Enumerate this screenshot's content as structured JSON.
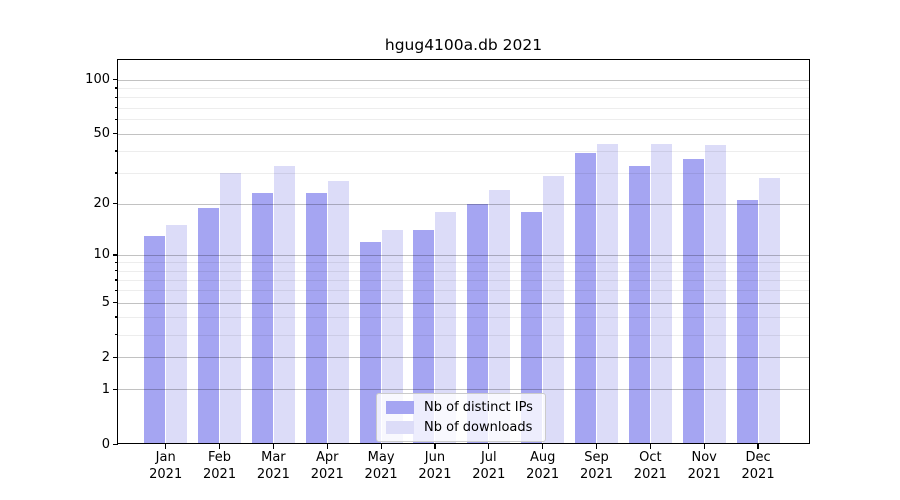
{
  "title": "hgug4100a.db 2021",
  "legend": {
    "items": [
      {
        "label": "Nb of distinct IPs"
      },
      {
        "label": "Nb of downloads"
      }
    ]
  },
  "chart_data": {
    "type": "bar",
    "title": "hgug4100a.db 2021",
    "categories": [
      "Jan 2021",
      "Feb 2021",
      "Mar 2021",
      "Apr 2021",
      "May 2021",
      "Jun 2021",
      "Jul 2021",
      "Aug 2021",
      "Sep 2021",
      "Oct 2021",
      "Nov 2021",
      "Dec 2021"
    ],
    "series": [
      {
        "name": "Nb of distinct IPs",
        "color": "#a5a5f2",
        "values": [
          13,
          19,
          23,
          23,
          12,
          14,
          20,
          18,
          39,
          33,
          36,
          21
        ]
      },
      {
        "name": "Nb of downloads",
        "color": "#dcdcf8",
        "values": [
          15,
          30,
          33,
          27,
          14,
          18,
          24,
          29,
          44,
          44,
          43,
          28
        ]
      }
    ],
    "xlabel": "",
    "ylabel": "",
    "yscale": "log10(value+1)",
    "yticks": [
      0,
      1,
      2,
      5,
      10,
      20,
      50,
      100
    ],
    "minor_yticks": [
      3,
      4,
      6,
      7,
      8,
      9,
      30,
      40,
      60,
      70,
      80,
      90
    ],
    "ylim": [
      0,
      128
    ],
    "grid": true,
    "legend_position": "inside lower-center"
  },
  "colors": {
    "major_grid": "rgba(0,0,0,0.24)",
    "minor_grid": "rgba(0,0,0,0.07)",
    "spine": "#000000"
  }
}
